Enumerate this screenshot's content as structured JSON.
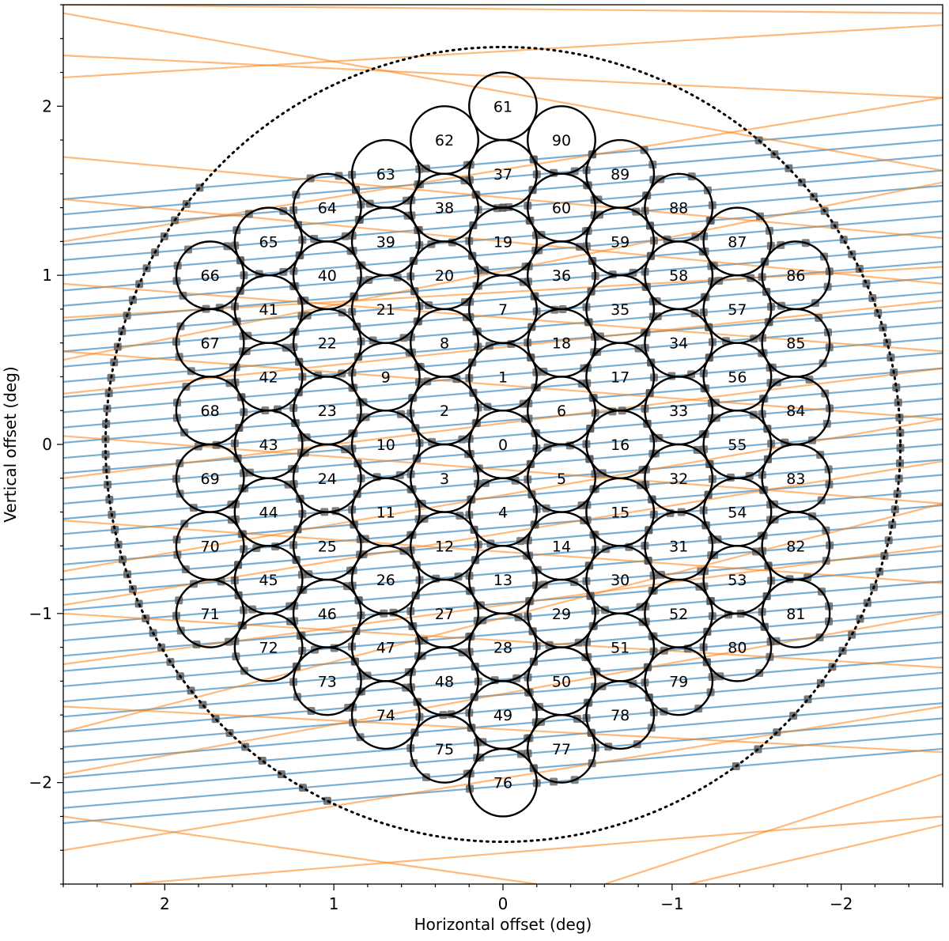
{
  "chart_data": {
    "type": "scatter",
    "title": "",
    "xlabel": "Horizontal offset (deg)",
    "ylabel": "Vertical offset (deg)",
    "xlim": [
      2.6,
      -2.6
    ],
    "ylim": [
      -2.6,
      2.6
    ],
    "x_ticks": [
      2,
      1,
      0,
      -1,
      -2
    ],
    "y_ticks": [
      -2,
      -1,
      0,
      1,
      2
    ],
    "x_tick_labels": [
      "2",
      "1",
      "0",
      "−1",
      "−2"
    ],
    "y_tick_labels": [
      "−2",
      "−1",
      "0",
      "1",
      "2"
    ],
    "grid": false,
    "legend": "none",
    "outer_circle": {
      "radius": 2.35,
      "style": "dotted",
      "color": "#000000"
    },
    "beam_circle_radius": 0.2,
    "beam_spacing": 0.4,
    "beams": [
      {
        "id": "0",
        "x": 0,
        "y": 0
      },
      {
        "id": "1",
        "x": 0,
        "y": 0.4
      },
      {
        "id": "2",
        "x": 0.346,
        "y": 0.2
      },
      {
        "id": "3",
        "x": 0.346,
        "y": -0.2
      },
      {
        "id": "4",
        "x": 0,
        "y": -0.4
      },
      {
        "id": "5",
        "x": -0.346,
        "y": -0.2
      },
      {
        "id": "6",
        "x": -0.346,
        "y": 0.2
      },
      {
        "id": "7",
        "x": 0,
        "y": 0.8
      },
      {
        "id": "8",
        "x": 0.346,
        "y": 0.6
      },
      {
        "id": "9",
        "x": 0.693,
        "y": 0.4
      },
      {
        "id": "10",
        "x": 0.693,
        "y": 0
      },
      {
        "id": "11",
        "x": 0.693,
        "y": -0.4
      },
      {
        "id": "12",
        "x": 0.346,
        "y": -0.6
      },
      {
        "id": "13",
        "x": 0,
        "y": -0.8
      },
      {
        "id": "14",
        "x": -0.346,
        "y": -0.6
      },
      {
        "id": "15",
        "x": -0.693,
        "y": -0.4
      },
      {
        "id": "16",
        "x": -0.693,
        "y": 0
      },
      {
        "id": "17",
        "x": -0.693,
        "y": 0.4
      },
      {
        "id": "18",
        "x": -0.346,
        "y": 0.6
      },
      {
        "id": "19",
        "x": 0,
        "y": 1.2
      },
      {
        "id": "20",
        "x": 0.346,
        "y": 1.0
      },
      {
        "id": "21",
        "x": 0.693,
        "y": 0.8
      },
      {
        "id": "22",
        "x": 1.039,
        "y": 0.6
      },
      {
        "id": "23",
        "x": 1.039,
        "y": 0.2
      },
      {
        "id": "24",
        "x": 1.039,
        "y": -0.2
      },
      {
        "id": "25",
        "x": 1.039,
        "y": -0.6
      },
      {
        "id": "26",
        "x": 0.693,
        "y": -0.8
      },
      {
        "id": "27",
        "x": 0.346,
        "y": -1.0
      },
      {
        "id": "28",
        "x": 0,
        "y": -1.2
      },
      {
        "id": "29",
        "x": -0.346,
        "y": -1.0
      },
      {
        "id": "30",
        "x": -0.693,
        "y": -0.8
      },
      {
        "id": "31",
        "x": -1.039,
        "y": -0.6
      },
      {
        "id": "32",
        "x": -1.039,
        "y": -0.2
      },
      {
        "id": "33",
        "x": -1.039,
        "y": 0.2
      },
      {
        "id": "34",
        "x": -1.039,
        "y": 0.6
      },
      {
        "id": "35",
        "x": -0.693,
        "y": 0.8
      },
      {
        "id": "36",
        "x": -0.346,
        "y": 1.0
      },
      {
        "id": "37",
        "x": 0,
        "y": 1.6
      },
      {
        "id": "38",
        "x": 0.346,
        "y": 1.4
      },
      {
        "id": "39",
        "x": 0.693,
        "y": 1.2
      },
      {
        "id": "40",
        "x": 1.039,
        "y": 1.0
      },
      {
        "id": "41",
        "x": 1.386,
        "y": 0.8
      },
      {
        "id": "42",
        "x": 1.386,
        "y": 0.4
      },
      {
        "id": "43",
        "x": 1.386,
        "y": 0
      },
      {
        "id": "44",
        "x": 1.386,
        "y": -0.4
      },
      {
        "id": "45",
        "x": 1.386,
        "y": -0.8
      },
      {
        "id": "46",
        "x": 1.039,
        "y": -1.0
      },
      {
        "id": "47",
        "x": 0.693,
        "y": -1.2
      },
      {
        "id": "48",
        "x": 0.346,
        "y": -1.4
      },
      {
        "id": "49",
        "x": 0,
        "y": -1.6
      },
      {
        "id": "50",
        "x": -0.346,
        "y": -1.4
      },
      {
        "id": "51",
        "x": -0.693,
        "y": -1.2
      },
      {
        "id": "52",
        "x": -1.039,
        "y": -1.0
      },
      {
        "id": "53",
        "x": -1.386,
        "y": -0.8
      },
      {
        "id": "54",
        "x": -1.386,
        "y": -0.4
      },
      {
        "id": "55",
        "x": -1.386,
        "y": 0
      },
      {
        "id": "56",
        "x": -1.386,
        "y": 0.4
      },
      {
        "id": "57",
        "x": -1.386,
        "y": 0.8
      },
      {
        "id": "58",
        "x": -1.039,
        "y": 1.0
      },
      {
        "id": "59",
        "x": -0.693,
        "y": 1.2
      },
      {
        "id": "60",
        "x": -0.346,
        "y": 1.4
      },
      {
        "id": "61",
        "x": 0,
        "y": 2.0
      },
      {
        "id": "62",
        "x": 0.346,
        "y": 1.8
      },
      {
        "id": "63",
        "x": 0.693,
        "y": 1.6
      },
      {
        "id": "64",
        "x": 1.039,
        "y": 1.4
      },
      {
        "id": "65",
        "x": 1.386,
        "y": 1.2
      },
      {
        "id": "66",
        "x": 1.732,
        "y": 1.0
      },
      {
        "id": "67",
        "x": 1.732,
        "y": 0.6
      },
      {
        "id": "68",
        "x": 1.732,
        "y": 0.2
      },
      {
        "id": "69",
        "x": 1.732,
        "y": -0.2
      },
      {
        "id": "70",
        "x": 1.732,
        "y": -0.6
      },
      {
        "id": "71",
        "x": 1.732,
        "y": -1.0
      },
      {
        "id": "72",
        "x": 1.386,
        "y": -1.2
      },
      {
        "id": "73",
        "x": 1.039,
        "y": -1.4
      },
      {
        "id": "74",
        "x": 0.693,
        "y": -1.6
      },
      {
        "id": "75",
        "x": 0.346,
        "y": -1.8
      },
      {
        "id": "76",
        "x": 0,
        "y": -2.0
      },
      {
        "id": "77",
        "x": -0.346,
        "y": -1.8
      },
      {
        "id": "78",
        "x": -0.693,
        "y": -1.6
      },
      {
        "id": "79",
        "x": -1.039,
        "y": -1.4
      },
      {
        "id": "80",
        "x": -1.386,
        "y": -1.2
      },
      {
        "id": "81",
        "x": -1.732,
        "y": -1.0
      },
      {
        "id": "82",
        "x": -1.732,
        "y": -0.6
      },
      {
        "id": "83",
        "x": -1.732,
        "y": -0.2
      },
      {
        "id": "84",
        "x": -1.732,
        "y": 0.2
      },
      {
        "id": "85",
        "x": -1.732,
        "y": 0.6
      },
      {
        "id": "86",
        "x": -1.732,
        "y": 1.0
      },
      {
        "id": "87",
        "x": -1.386,
        "y": 1.2
      },
      {
        "id": "88",
        "x": -1.039,
        "y": 1.4
      },
      {
        "id": "89",
        "x": -0.693,
        "y": 1.6
      },
      {
        "id": "90",
        "x": -0.346,
        "y": 1.8
      }
    ],
    "blue_tracks": {
      "color": "#1f77b4",
      "x_start": 2.6,
      "x_end": -2.6,
      "y_start_values": [
        1.45,
        1.36,
        1.27,
        1.18,
        1.09,
        1.0,
        0.91,
        0.82,
        0.73,
        0.64,
        0.55,
        0.46,
        0.37,
        0.28,
        0.19,
        0.1,
        0.01,
        -0.08,
        -0.17,
        -0.26,
        -0.35,
        -0.44,
        -0.53,
        -0.62,
        -0.71,
        -0.8,
        -0.89,
        -0.98,
        -1.07,
        -1.16,
        -1.25,
        -1.34,
        -1.43,
        -1.52,
        -1.61,
        -1.7,
        -1.79,
        -1.88,
        -1.97,
        -2.06,
        -2.15,
        -2.24
      ],
      "y_end_values": [
        1.89,
        1.8,
        1.71,
        1.62,
        1.53,
        1.44,
        1.35,
        1.26,
        1.17,
        1.08,
        0.99,
        0.9,
        0.81,
        0.72,
        0.63,
        0.54,
        0.45,
        0.36,
        0.27,
        0.18,
        0.09,
        0.0,
        -0.09,
        -0.18,
        -0.27,
        -0.36,
        -0.45,
        -0.54,
        -0.63,
        -0.72,
        -0.81,
        -0.9,
        -0.99,
        -1.08,
        -1.17,
        -1.26,
        -1.35,
        -1.44,
        -1.53,
        -1.62,
        -1.71,
        -1.8
      ]
    },
    "orange_tracks": {
      "color": "#ff7f0e",
      "segments": [
        [
          2.6,
          2.6,
          -2.6,
          2.55
        ],
        [
          2.6,
          2.55,
          -2.6,
          1.62
        ],
        [
          2.6,
          2.17,
          -2.6,
          2.48
        ],
        [
          2.6,
          1.7,
          -2.6,
          1.22
        ],
        [
          2.6,
          1.45,
          -2.6,
          0.95
        ],
        [
          2.6,
          1.2,
          -2.6,
          2.05
        ],
        [
          2.6,
          0.95,
          -2.6,
          0.55
        ],
        [
          2.6,
          0.75,
          -2.6,
          1.05
        ],
        [
          2.6,
          0.55,
          -2.6,
          0.15
        ],
        [
          2.6,
          0.3,
          -2.6,
          0.85
        ],
        [
          2.6,
          0.05,
          -2.6,
          -0.35
        ],
        [
          2.6,
          -0.2,
          -2.6,
          0.45
        ],
        [
          2.6,
          -0.45,
          -2.6,
          -0.82
        ],
        [
          2.6,
          -0.75,
          -2.6,
          0.15
        ],
        [
          2.6,
          -1.0,
          -2.6,
          -1.32
        ],
        [
          2.6,
          -1.3,
          -2.6,
          -0.6
        ],
        [
          2.6,
          -1.55,
          -2.6,
          -1.82
        ],
        [
          2.6,
          -1.7,
          -2.6,
          -0.35
        ],
        [
          2.6,
          -1.95,
          -2.6,
          -1.0
        ],
        [
          2.6,
          -2.4,
          -2.6,
          -1.55
        ],
        [
          2.2,
          -2.6,
          -2.6,
          -2.2
        ],
        [
          2.6,
          -2.2,
          -0.2,
          -2.6
        ],
        [
          -0.6,
          -2.6,
          -2.6,
          -1.95
        ],
        [
          -1.1,
          -2.6,
          -2.6,
          -2.25
        ],
        [
          2.6,
          0.5,
          -2.6,
          1.55
        ],
        [
          2.6,
          -0.95,
          -2.6,
          -0.1
        ],
        [
          2.6,
          2.3,
          -2.6,
          2.05
        ]
      ]
    },
    "marker_color": "#555555"
  }
}
